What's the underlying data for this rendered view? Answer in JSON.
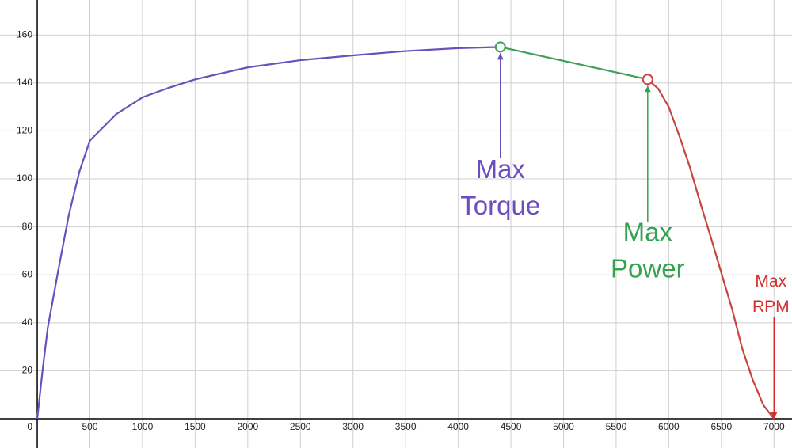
{
  "chart_data": {
    "type": "line",
    "xlim": [
      -354,
      7171
    ],
    "ylim": [
      -12.2,
      174.6
    ],
    "xticks": [
      0,
      500,
      1000,
      1500,
      2000,
      2500,
      3000,
      3500,
      4000,
      4500,
      5000,
      5500,
      6000,
      6500,
      7000
    ],
    "yticks": [
      20,
      40,
      60,
      80,
      100,
      120,
      140,
      160
    ],
    "grid": true,
    "series": [
      {
        "color": "#6a4fbd",
        "x": [
          0,
          50,
          100,
          200,
          300,
          400,
          500,
          750,
          1000,
          1250,
          1500,
          2000,
          2500,
          3000,
          3500,
          4000,
          4400
        ],
        "values": [
          0,
          20,
          38,
          62,
          85,
          103,
          116,
          127,
          134,
          138,
          141.5,
          146.5,
          149.5,
          151.5,
          153.3,
          154.5,
          155
        ]
      },
      {
        "color": "#3f9f55",
        "x": [
          4400,
          5800
        ],
        "values": [
          155,
          141.5
        ]
      },
      {
        "color": "#c74440",
        "x": [
          5800,
          5900,
          6000,
          6100,
          6200,
          6300,
          6400,
          6500,
          6600,
          6700,
          6800,
          6900,
          7000
        ],
        "values": [
          141.5,
          137.6,
          130,
          118,
          105,
          90,
          75.6,
          60.7,
          46,
          29,
          16,
          5.6,
          0
        ]
      }
    ],
    "annotations": [
      {
        "lines": [
          "Max",
          "Torque"
        ],
        "x": 4400,
        "y": 103.3,
        "target": 155,
        "color": "#6a4fbd"
      },
      {
        "lines": [
          "Max",
          "Power"
        ],
        "x": 5800,
        "y": 76.9,
        "target": 141.5,
        "color": "#35a24f"
      },
      {
        "lines": [
          "Max",
          "RPM"
        ],
        "x": 7000,
        "y": 57,
        "target": 0,
        "color": "#d62c2c"
      }
    ]
  }
}
